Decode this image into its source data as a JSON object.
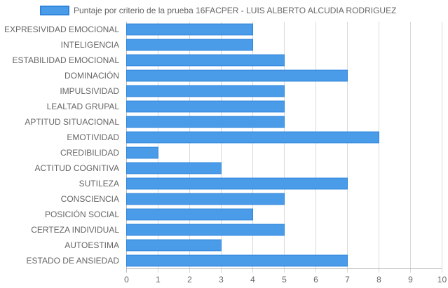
{
  "colors": {
    "bar_fill": "#4a9be8",
    "bar_stroke": "#2f86dc",
    "grid": "#d9d9d9",
    "axis": "#bdbdbd",
    "text": "#666666"
  },
  "chart_data": {
    "type": "bar",
    "orientation": "horizontal",
    "categories": [
      "EXPRESIVIDAD EMOCIONAL",
      "INTELIGENCIA",
      "ESTABILIDAD EMOCIONAL",
      "DOMINACIÓN",
      "IMPULSIVIDAD",
      "LEALTAD GRUPAL",
      "APTITUD SITUACIONAL",
      "EMOTIVIDAD",
      "CREDIBILIDAD",
      "ACTITUD COGNITIVA",
      "SUTILEZA",
      "CONSCIENCIA",
      "POSICIÓN SOCIAL",
      "CERTEZA INDIVIDUAL",
      "AUTOESTIMA",
      "ESTADO DE ANSIEDAD"
    ],
    "series": [
      {
        "name": "Puntaje por criterio de la prueba 16FACPER - LUIS ALBERTO ALCUDIA RODRIGUEZ",
        "values": [
          4,
          4,
          5,
          7,
          5,
          5,
          5,
          8,
          1,
          3,
          7,
          5,
          4,
          5,
          3,
          7
        ]
      }
    ],
    "xlim": [
      0,
      10
    ],
    "xticks": [
      "0",
      "1",
      "2",
      "3",
      "4",
      "5",
      "6",
      "7",
      "8",
      "9",
      "10"
    ],
    "grid": true,
    "legend_position": "top"
  }
}
